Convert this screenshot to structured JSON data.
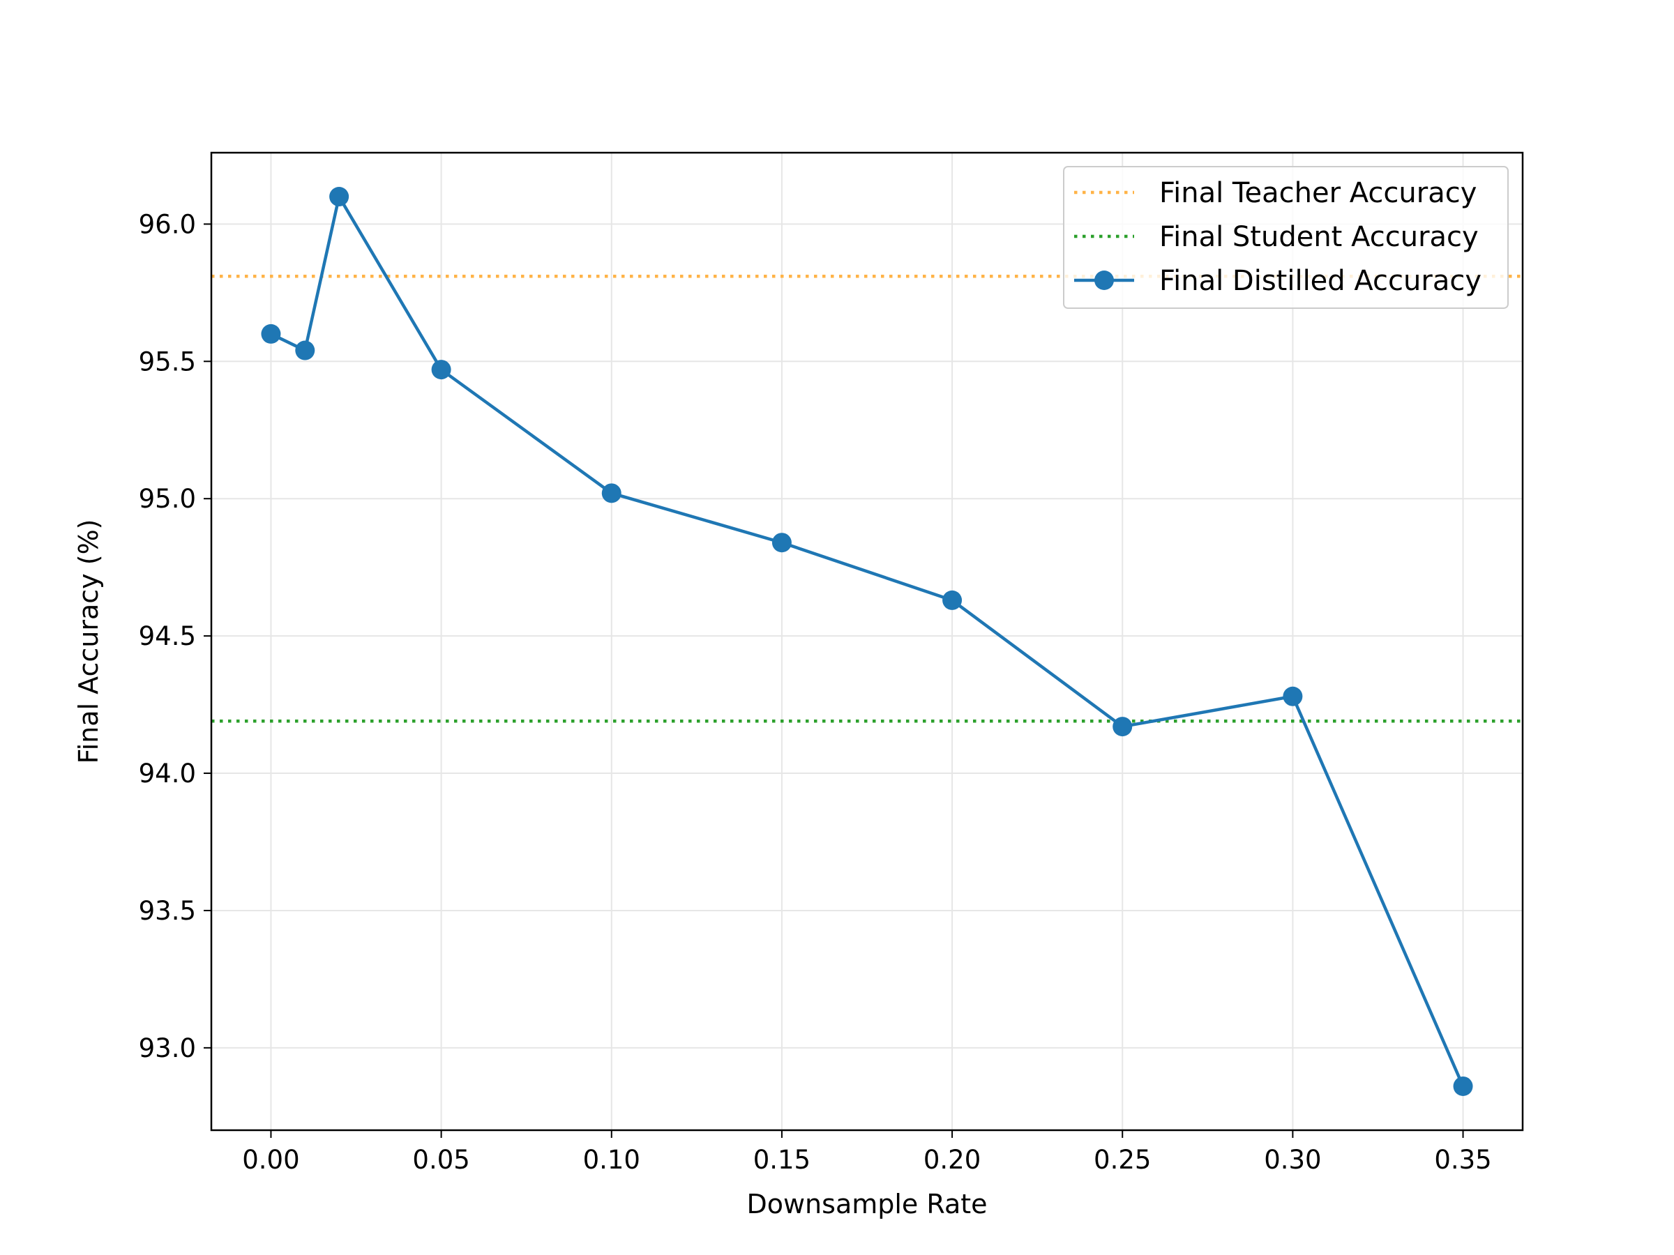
{
  "chart_data": {
    "type": "line",
    "xlabel": "Downsample Rate",
    "ylabel": "Final Accuracy (%)",
    "xlim": [
      -0.0175,
      0.3675
    ],
    "ylim": [
      92.7,
      96.26
    ],
    "xticks": [
      0.0,
      0.05,
      0.1,
      0.15,
      0.2,
      0.25,
      0.3,
      0.35
    ],
    "xtick_labels": [
      "0.00",
      "0.05",
      "0.10",
      "0.15",
      "0.20",
      "0.25",
      "0.30",
      "0.35"
    ],
    "yticks": [
      93.0,
      93.5,
      94.0,
      94.5,
      95.0,
      95.5,
      96.0
    ],
    "ytick_labels": [
      "93.0",
      "93.5",
      "94.0",
      "94.5",
      "95.0",
      "95.5",
      "96.0"
    ],
    "grid": true,
    "legend_position": "top-right",
    "reference_lines": [
      {
        "name": "Final Teacher Accuracy",
        "y": 95.81,
        "color": "#ffb347",
        "style": "dotted"
      },
      {
        "name": "Final Student Accuracy",
        "y": 94.19,
        "color": "#2ca02c",
        "style": "dotted"
      }
    ],
    "series": [
      {
        "name": "Final Distilled Accuracy",
        "color": "#1f77b4",
        "marker": "circle",
        "x": [
          0.0,
          0.01,
          0.02,
          0.05,
          0.1,
          0.15,
          0.2,
          0.25,
          0.3,
          0.35
        ],
        "y": [
          95.6,
          95.54,
          96.1,
          95.47,
          95.02,
          94.84,
          94.63,
          94.17,
          94.28,
          92.86
        ]
      }
    ]
  }
}
